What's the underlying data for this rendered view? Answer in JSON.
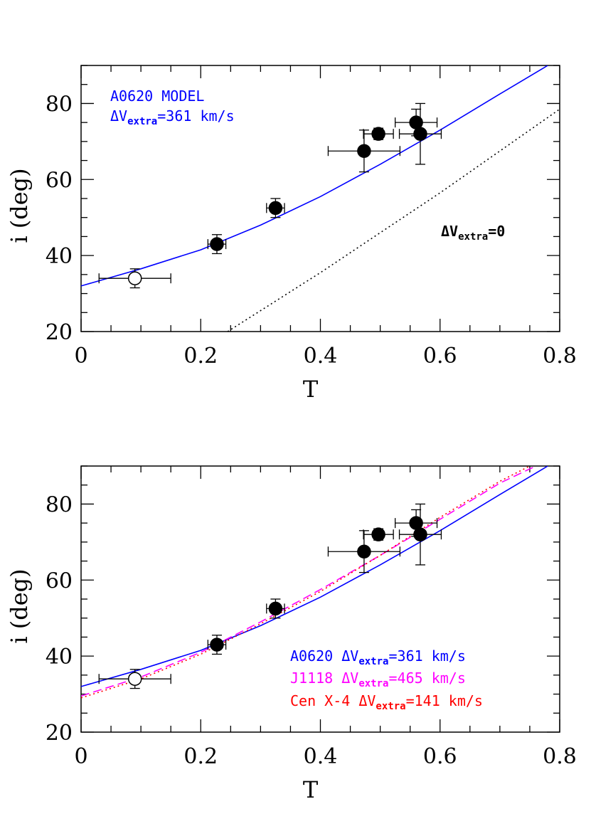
{
  "chart_data": [
    {
      "type": "scatter",
      "xlabel": "T",
      "ylabel": "i (deg)",
      "xlim": [
        0,
        0.8
      ],
      "ylim": [
        20,
        90
      ],
      "xticks": [
        "0",
        "0.2",
        "0.4",
        "0.6",
        "0.8"
      ],
      "yticks": [
        "20",
        "40",
        "60",
        "80"
      ],
      "points": [
        {
          "x": 0.09,
          "y": 34,
          "xerr": [
            0.06,
            0.06
          ],
          "yerr": [
            2.5,
            2.5
          ],
          "filled": false
        },
        {
          "x": 0.227,
          "y": 43,
          "xerr": [
            0.015,
            0.015
          ],
          "yerr": [
            2.5,
            2.5
          ],
          "filled": true
        },
        {
          "x": 0.325,
          "y": 52.5,
          "xerr": [
            0.015,
            0.015
          ],
          "yerr": [
            2.5,
            2.5
          ],
          "filled": true
        },
        {
          "x": 0.473,
          "y": 67.5,
          "xerr": [
            0.06,
            0.06
          ],
          "yerr": [
            5.5,
            5.5
          ],
          "filled": true
        },
        {
          "x": 0.497,
          "y": 72,
          "xerr": [
            0.025,
            0.025
          ],
          "yerr": [
            1.5,
            1.5
          ],
          "filled": true
        },
        {
          "x": 0.56,
          "y": 75,
          "xerr": [
            0.035,
            0.035
          ],
          "yerr": [
            3.5,
            3.5
          ],
          "filled": true
        },
        {
          "x": 0.567,
          "y": 72,
          "xerr": [
            0.035,
            0.035
          ],
          "yerr": [
            8,
            8
          ],
          "filled": true
        }
      ],
      "curves": [
        {
          "name": "A0620 MODEL",
          "color": "#0000ff",
          "style": "solid",
          "x": [
            0,
            0.1,
            0.2,
            0.3,
            0.4,
            0.5,
            0.6,
            0.7,
            0.78
          ],
          "y": [
            32,
            36.5,
            41.5,
            48,
            55.5,
            64,
            73,
            82.5,
            90
          ]
        },
        {
          "name": "",
          "color": "#000000",
          "style": "dotted",
          "x": [
            0.245,
            0.3,
            0.4,
            0.5,
            0.6,
            0.7,
            0.8
          ],
          "y": [
            20,
            25.5,
            35.5,
            46,
            56.5,
            67.5,
            78.5
          ]
        }
      ],
      "annotations": [
        {
          "text": "A0620 MODEL",
          "color": "#0000ff"
        },
        {
          "text": "ΔV",
          "sub": "extra",
          "suffix": "=361 km/s",
          "color": "#0000ff"
        },
        {
          "text": "ΔV",
          "sub": "extra",
          "suffix": "=0",
          "color": "#000000"
        }
      ]
    },
    {
      "type": "scatter",
      "xlabel": "T",
      "ylabel": "i (deg)",
      "xlim": [
        0,
        0.8
      ],
      "ylim": [
        20,
        90
      ],
      "xticks": [
        "0",
        "0.2",
        "0.4",
        "0.6",
        "0.8"
      ],
      "yticks": [
        "20",
        "40",
        "60",
        "80"
      ],
      "points": [
        {
          "x": 0.09,
          "y": 34,
          "xerr": [
            0.06,
            0.06
          ],
          "yerr": [
            2.5,
            2.5
          ],
          "filled": false
        },
        {
          "x": 0.227,
          "y": 43,
          "xerr": [
            0.015,
            0.015
          ],
          "yerr": [
            2.5,
            2.5
          ],
          "filled": true
        },
        {
          "x": 0.325,
          "y": 52.5,
          "xerr": [
            0.015,
            0.015
          ],
          "yerr": [
            2.5,
            2.5
          ],
          "filled": true
        },
        {
          "x": 0.473,
          "y": 67.5,
          "xerr": [
            0.06,
            0.06
          ],
          "yerr": [
            5.5,
            5.5
          ],
          "filled": true
        },
        {
          "x": 0.497,
          "y": 72,
          "xerr": [
            0.025,
            0.025
          ],
          "yerr": [
            1.5,
            1.5
          ],
          "filled": true
        },
        {
          "x": 0.56,
          "y": 75,
          "xerr": [
            0.035,
            0.035
          ],
          "yerr": [
            3.5,
            3.5
          ],
          "filled": true
        },
        {
          "x": 0.567,
          "y": 72,
          "xerr": [
            0.035,
            0.035
          ],
          "yerr": [
            8,
            8
          ],
          "filled": true
        }
      ],
      "curves": [
        {
          "name": "A0620",
          "color": "#0000ff",
          "style": "solid",
          "x": [
            0,
            0.1,
            0.2,
            0.3,
            0.4,
            0.5,
            0.6,
            0.7,
            0.78
          ],
          "y": [
            32,
            36.5,
            41.5,
            48,
            55.5,
            64,
            73,
            82.5,
            90
          ]
        },
        {
          "name": "J1118",
          "color": "#ff00ff",
          "style": "dashed",
          "x": [
            0,
            0.1,
            0.2,
            0.3,
            0.4,
            0.5,
            0.6,
            0.7,
            0.76
          ],
          "y": [
            29.5,
            34.5,
            41,
            49,
            57.5,
            66.5,
            76,
            85.5,
            90
          ]
        },
        {
          "name": "Cen X-4",
          "color": "#ff0000",
          "style": "dotted",
          "x": [
            0,
            0.1,
            0.2,
            0.3,
            0.4,
            0.5,
            0.6,
            0.7,
            0.75
          ],
          "y": [
            29,
            34,
            40.5,
            48.5,
            57,
            66.5,
            76.5,
            86,
            90
          ]
        }
      ],
      "annotations": [
        {
          "text": "A0620 ΔV",
          "sub": "extra",
          "suffix": "=361 km/s",
          "color": "#0000ff"
        },
        {
          "text": "J1118 ΔV",
          "sub": "extra",
          "suffix": "=465 km/s",
          "color": "#ff00ff"
        },
        {
          "text": "Cen X-4 ΔV",
          "sub": "extra",
          "suffix": "=141 km/s",
          "color": "#ff0000"
        }
      ]
    }
  ]
}
